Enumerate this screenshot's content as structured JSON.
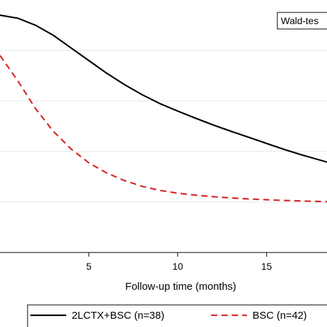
{
  "chart_data": {
    "type": "line",
    "xlabel": "Follow-up time (months)",
    "x_ticks": [
      5,
      10,
      15
    ],
    "xlim": [
      0,
      18.4
    ],
    "ylim": [
      0,
      1
    ],
    "y_gridlines": [
      0.2,
      0.4,
      0.6,
      0.8
    ],
    "grid": true,
    "annotation": "Wald-tes",
    "legend_position": "bottom",
    "series": [
      {
        "name": "2LCTX+BSC (n=38)",
        "color": "#000000",
        "dash": "solid",
        "x": [
          0,
          1,
          2,
          3,
          4,
          5,
          6,
          7,
          8,
          9,
          10,
          11,
          12,
          13,
          14,
          15,
          16,
          17,
          18,
          18.4
        ],
        "y": [
          0.94,
          0.928,
          0.9,
          0.86,
          0.81,
          0.76,
          0.71,
          0.665,
          0.625,
          0.59,
          0.56,
          0.532,
          0.505,
          0.48,
          0.456,
          0.432,
          0.408,
          0.386,
          0.366,
          0.358
        ]
      },
      {
        "name": "BSC (n=42)",
        "color": "#d62728",
        "dash": "dashed",
        "x": [
          0,
          1,
          2,
          3,
          4,
          5,
          6,
          7,
          8,
          9,
          10,
          11,
          12,
          13,
          14,
          15,
          16,
          17,
          18,
          18.4
        ],
        "y": [
          0.78,
          0.68,
          0.57,
          0.48,
          0.41,
          0.355,
          0.315,
          0.285,
          0.262,
          0.246,
          0.235,
          0.227,
          0.221,
          0.216,
          0.212,
          0.209,
          0.206,
          0.204,
          0.202,
          0.201
        ]
      }
    ]
  }
}
